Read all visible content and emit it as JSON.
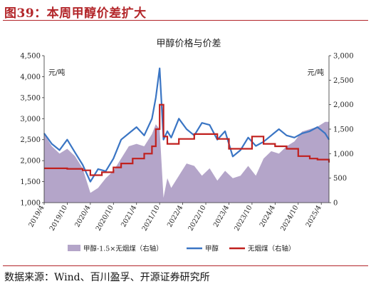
{
  "figure_title": "图39：本周甲醇价差扩大",
  "source_note": "数据来源：Wind、百川盈孚、开源证券研究所",
  "colors": {
    "accent": "#b3262a",
    "spread_area": "#b4a5c9",
    "methanol_line": "#3a75c4",
    "coal_line": "#c0201e"
  },
  "chart_data": {
    "type": "line",
    "title": "甲醇价格与价差",
    "left_axis": {
      "unit_label": "元/吨",
      "ylim": [
        1000,
        4500
      ],
      "ticks": [
        "1,000",
        "1,500",
        "2,000",
        "2,500",
        "3,000",
        "3,500",
        "4,000",
        "4,500"
      ]
    },
    "right_axis": {
      "unit_label": "元/吨",
      "ylim": [
        0,
        3000
      ],
      "ticks": [
        "0",
        "500",
        "1,000",
        "1,500",
        "2,000",
        "2,500",
        "3,000"
      ]
    },
    "x_ticks": [
      "2019/4",
      "2019/10",
      "2020/4",
      "2020/10",
      "2021/4",
      "2021/10",
      "2022/4",
      "2022/10",
      "2023/4",
      "2023/10",
      "2024/4",
      "2024/10",
      "2025/4"
    ],
    "x_range": [
      "2019-04",
      "2025-06"
    ],
    "grid": false,
    "legend_position": "bottom",
    "series": [
      {
        "name": "甲醇-1.5×无烟煤（右轴）",
        "type": "area",
        "axis": "right",
        "x": [
          "2019-04",
          "2019-06",
          "2019-08",
          "2019-10",
          "2019-12",
          "2020-02",
          "2020-04",
          "2020-06",
          "2020-08",
          "2020-10",
          "2020-12",
          "2021-02",
          "2021-04",
          "2021-06",
          "2021-08",
          "2021-09",
          "2021-10",
          "2021-11",
          "2021-12",
          "2022-01",
          "2022-03",
          "2022-05",
          "2022-07",
          "2022-09",
          "2022-11",
          "2023-01",
          "2023-03",
          "2023-05",
          "2023-07",
          "2023-09",
          "2023-11",
          "2024-01",
          "2024-03",
          "2024-05",
          "2024-07",
          "2024-09",
          "2024-11",
          "2025-01",
          "2025-03",
          "2025-05",
          "2025-06"
        ],
        "values": [
          1400,
          1150,
          1000,
          1100,
          950,
          700,
          200,
          300,
          500,
          650,
          900,
          1150,
          1200,
          1150,
          1400,
          1600,
          1500,
          100,
          500,
          300,
          550,
          800,
          750,
          550,
          700,
          450,
          650,
          500,
          550,
          750,
          550,
          900,
          1050,
          1000,
          1150,
          1250,
          1450,
          1500,
          1550,
          1650,
          1650
        ]
      },
      {
        "name": "甲醇",
        "type": "line",
        "axis": "left",
        "x": [
          "2019-04",
          "2019-06",
          "2019-08",
          "2019-10",
          "2019-12",
          "2020-02",
          "2020-04",
          "2020-06",
          "2020-08",
          "2020-10",
          "2020-12",
          "2021-02",
          "2021-04",
          "2021-06",
          "2021-08",
          "2021-09",
          "2021-10",
          "2021-11",
          "2021-12",
          "2022-01",
          "2022-03",
          "2022-05",
          "2022-07",
          "2022-09",
          "2022-11",
          "2023-01",
          "2023-03",
          "2023-05",
          "2023-07",
          "2023-09",
          "2023-11",
          "2024-01",
          "2024-03",
          "2024-05",
          "2024-07",
          "2024-09",
          "2024-11",
          "2025-01",
          "2025-03",
          "2025-05",
          "2025-06"
        ],
        "values": [
          2650,
          2400,
          2250,
          2500,
          2200,
          1900,
          1500,
          1800,
          1750,
          2050,
          2500,
          2650,
          2800,
          2600,
          3000,
          3500,
          4200,
          2500,
          2700,
          2550,
          3000,
          2750,
          2600,
          2900,
          2850,
          2500,
          2700,
          2100,
          2250,
          2550,
          2350,
          2450,
          2600,
          2750,
          2600,
          2550,
          2650,
          2700,
          2800,
          2650,
          2500
        ]
      },
      {
        "name": "无烟煤（右轴）",
        "type": "step",
        "axis": "right",
        "x": [
          "2019-04",
          "2019-10",
          "2020-02",
          "2020-04",
          "2020-07",
          "2020-10",
          "2020-12",
          "2021-03",
          "2021-06",
          "2021-08",
          "2021-09",
          "2021-10",
          "2021-11",
          "2021-12",
          "2022-03",
          "2022-07",
          "2022-10",
          "2023-01",
          "2023-04",
          "2023-07",
          "2023-10",
          "2024-01",
          "2024-04",
          "2024-07",
          "2024-10",
          "2025-01",
          "2025-03",
          "2025-06"
        ],
        "values": [
          700,
          690,
          660,
          560,
          620,
          720,
          800,
          900,
          1000,
          1150,
          1500,
          2000,
          1350,
          1200,
          1300,
          1400,
          1400,
          1300,
          1100,
          1100,
          1350,
          1200,
          1150,
          1100,
          950,
          900,
          880,
          820
        ]
      }
    ]
  }
}
